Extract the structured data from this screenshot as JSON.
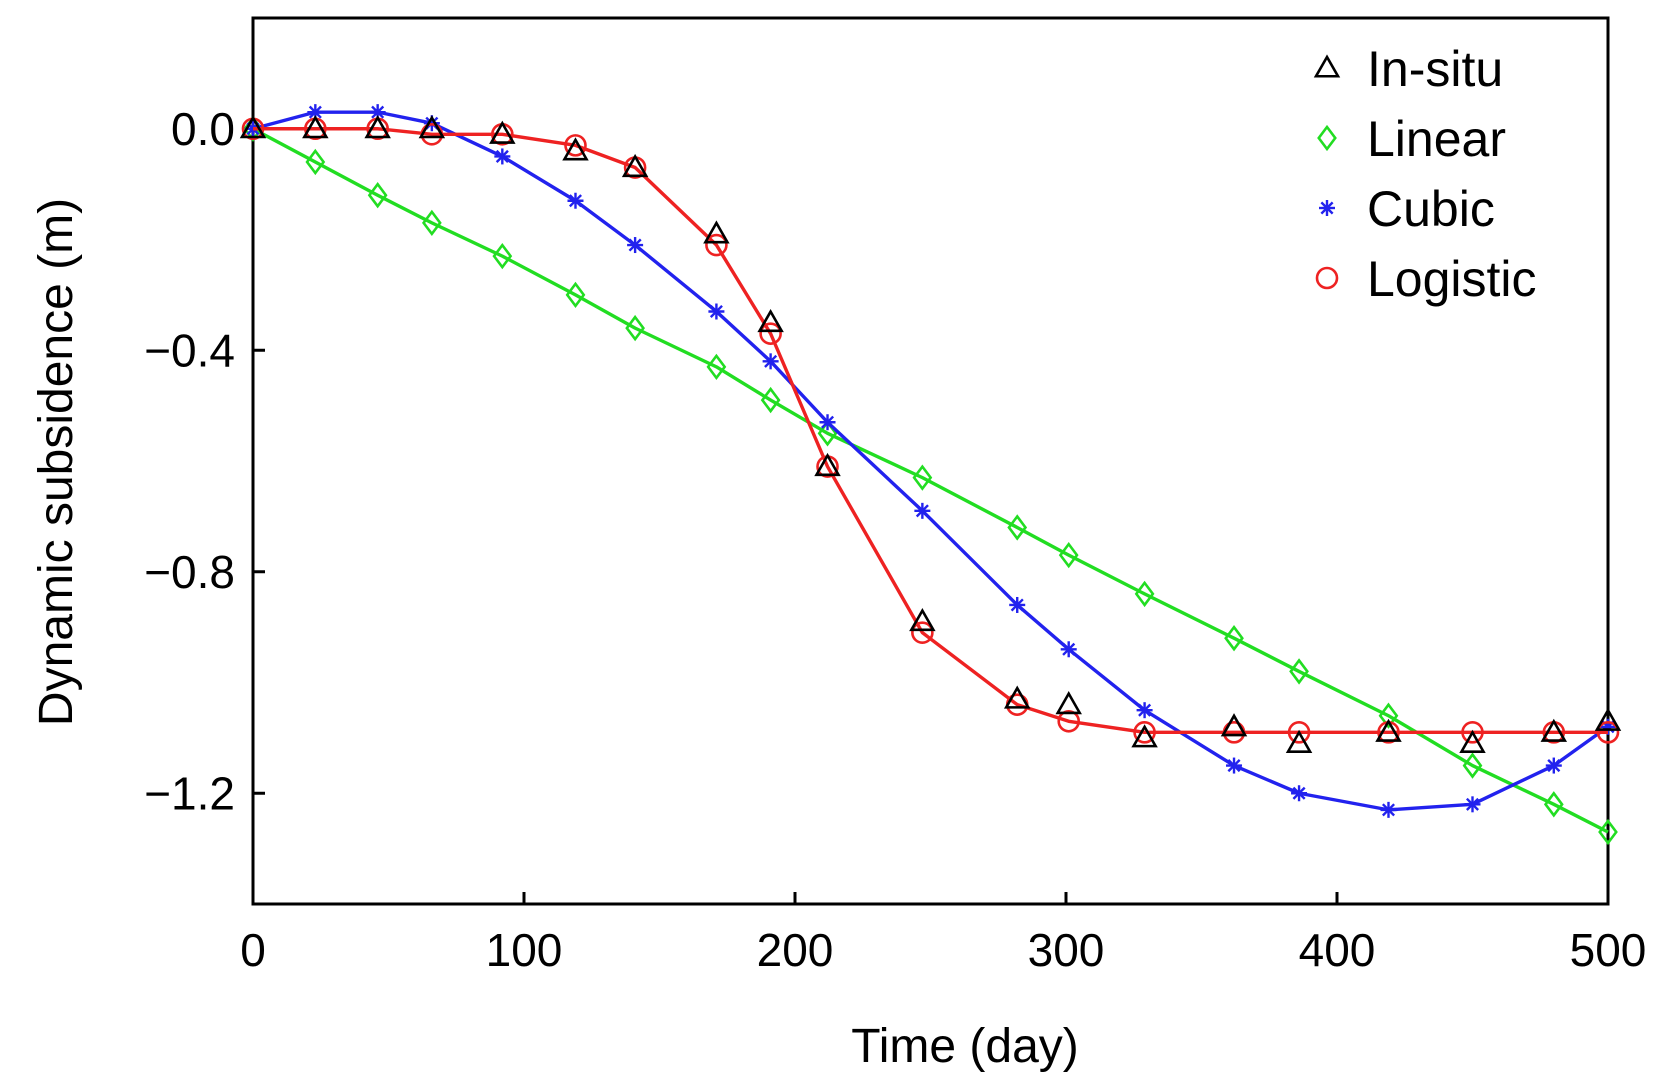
{
  "chart_data": {
    "type": "line",
    "title": "",
    "xlabel": "Time (day)",
    "ylabel": "Dynamic subsidence (m)",
    "xlim": [
      0,
      500
    ],
    "ylim": [
      -1.4,
      0.2
    ],
    "xticks": [
      0,
      100,
      200,
      300,
      400,
      500
    ],
    "yticks": [
      0.0,
      -0.4,
      -0.8,
      -1.2
    ],
    "xtick_labels": [
      "0",
      "100",
      "200",
      "300",
      "400",
      "500"
    ],
    "ytick_labels": [
      "0.0",
      "−0.4",
      "−0.8",
      "−1.2"
    ],
    "grid": false,
    "legend_position": "top-right",
    "series": [
      {
        "name": "In-situ",
        "marker": "triangle",
        "line": false,
        "color": "#000000",
        "x": [
          0,
          23,
          46,
          66,
          92,
          119,
          141,
          171,
          191,
          212,
          247,
          282,
          301,
          329,
          362,
          386,
          419,
          450,
          480,
          500
        ],
        "y": [
          0.0,
          0.0,
          0.0,
          0.0,
          -0.01,
          -0.04,
          -0.07,
          -0.19,
          -0.35,
          -0.61,
          -0.89,
          -1.03,
          -1.04,
          -1.1,
          -1.08,
          -1.11,
          -1.09,
          -1.11,
          -1.09,
          -1.07
        ]
      },
      {
        "name": "Linear",
        "marker": "diamond",
        "line": true,
        "color": "#22dd22",
        "x": [
          0,
          23,
          46,
          66,
          92,
          119,
          141,
          171,
          191,
          212,
          247,
          282,
          301,
          329,
          362,
          386,
          419,
          450,
          480,
          500
        ],
        "y": [
          0.0,
          -0.06,
          -0.12,
          -0.17,
          -0.23,
          -0.3,
          -0.36,
          -0.43,
          -0.49,
          -0.55,
          -0.63,
          -0.72,
          -0.77,
          -0.84,
          -0.92,
          -0.98,
          -1.06,
          -1.15,
          -1.22,
          -1.27
        ]
      },
      {
        "name": "Cubic",
        "marker": "asterisk",
        "line": true,
        "color": "#2222ee",
        "x": [
          0,
          23,
          46,
          66,
          92,
          119,
          141,
          171,
          191,
          212,
          247,
          282,
          301,
          329,
          362,
          386,
          419,
          450,
          480,
          500
        ],
        "y": [
          0.0,
          0.03,
          0.03,
          0.01,
          -0.05,
          -0.13,
          -0.21,
          -0.33,
          -0.42,
          -0.53,
          -0.69,
          -0.86,
          -0.94,
          -1.05,
          -1.15,
          -1.2,
          -1.23,
          -1.22,
          -1.15,
          -1.08
        ]
      },
      {
        "name": "Logistic",
        "marker": "circle",
        "line": true,
        "color": "#ee2222",
        "x": [
          0,
          23,
          46,
          66,
          92,
          119,
          141,
          171,
          191,
          212,
          247,
          282,
          301,
          329,
          362,
          386,
          419,
          450,
          480,
          500
        ],
        "y": [
          0.0,
          0.0,
          0.0,
          -0.01,
          -0.01,
          -0.03,
          -0.07,
          -0.21,
          -0.37,
          -0.61,
          -0.91,
          -1.04,
          -1.07,
          -1.09,
          -1.09,
          -1.09,
          -1.09,
          -1.09,
          -1.09,
          -1.09
        ]
      }
    ]
  }
}
